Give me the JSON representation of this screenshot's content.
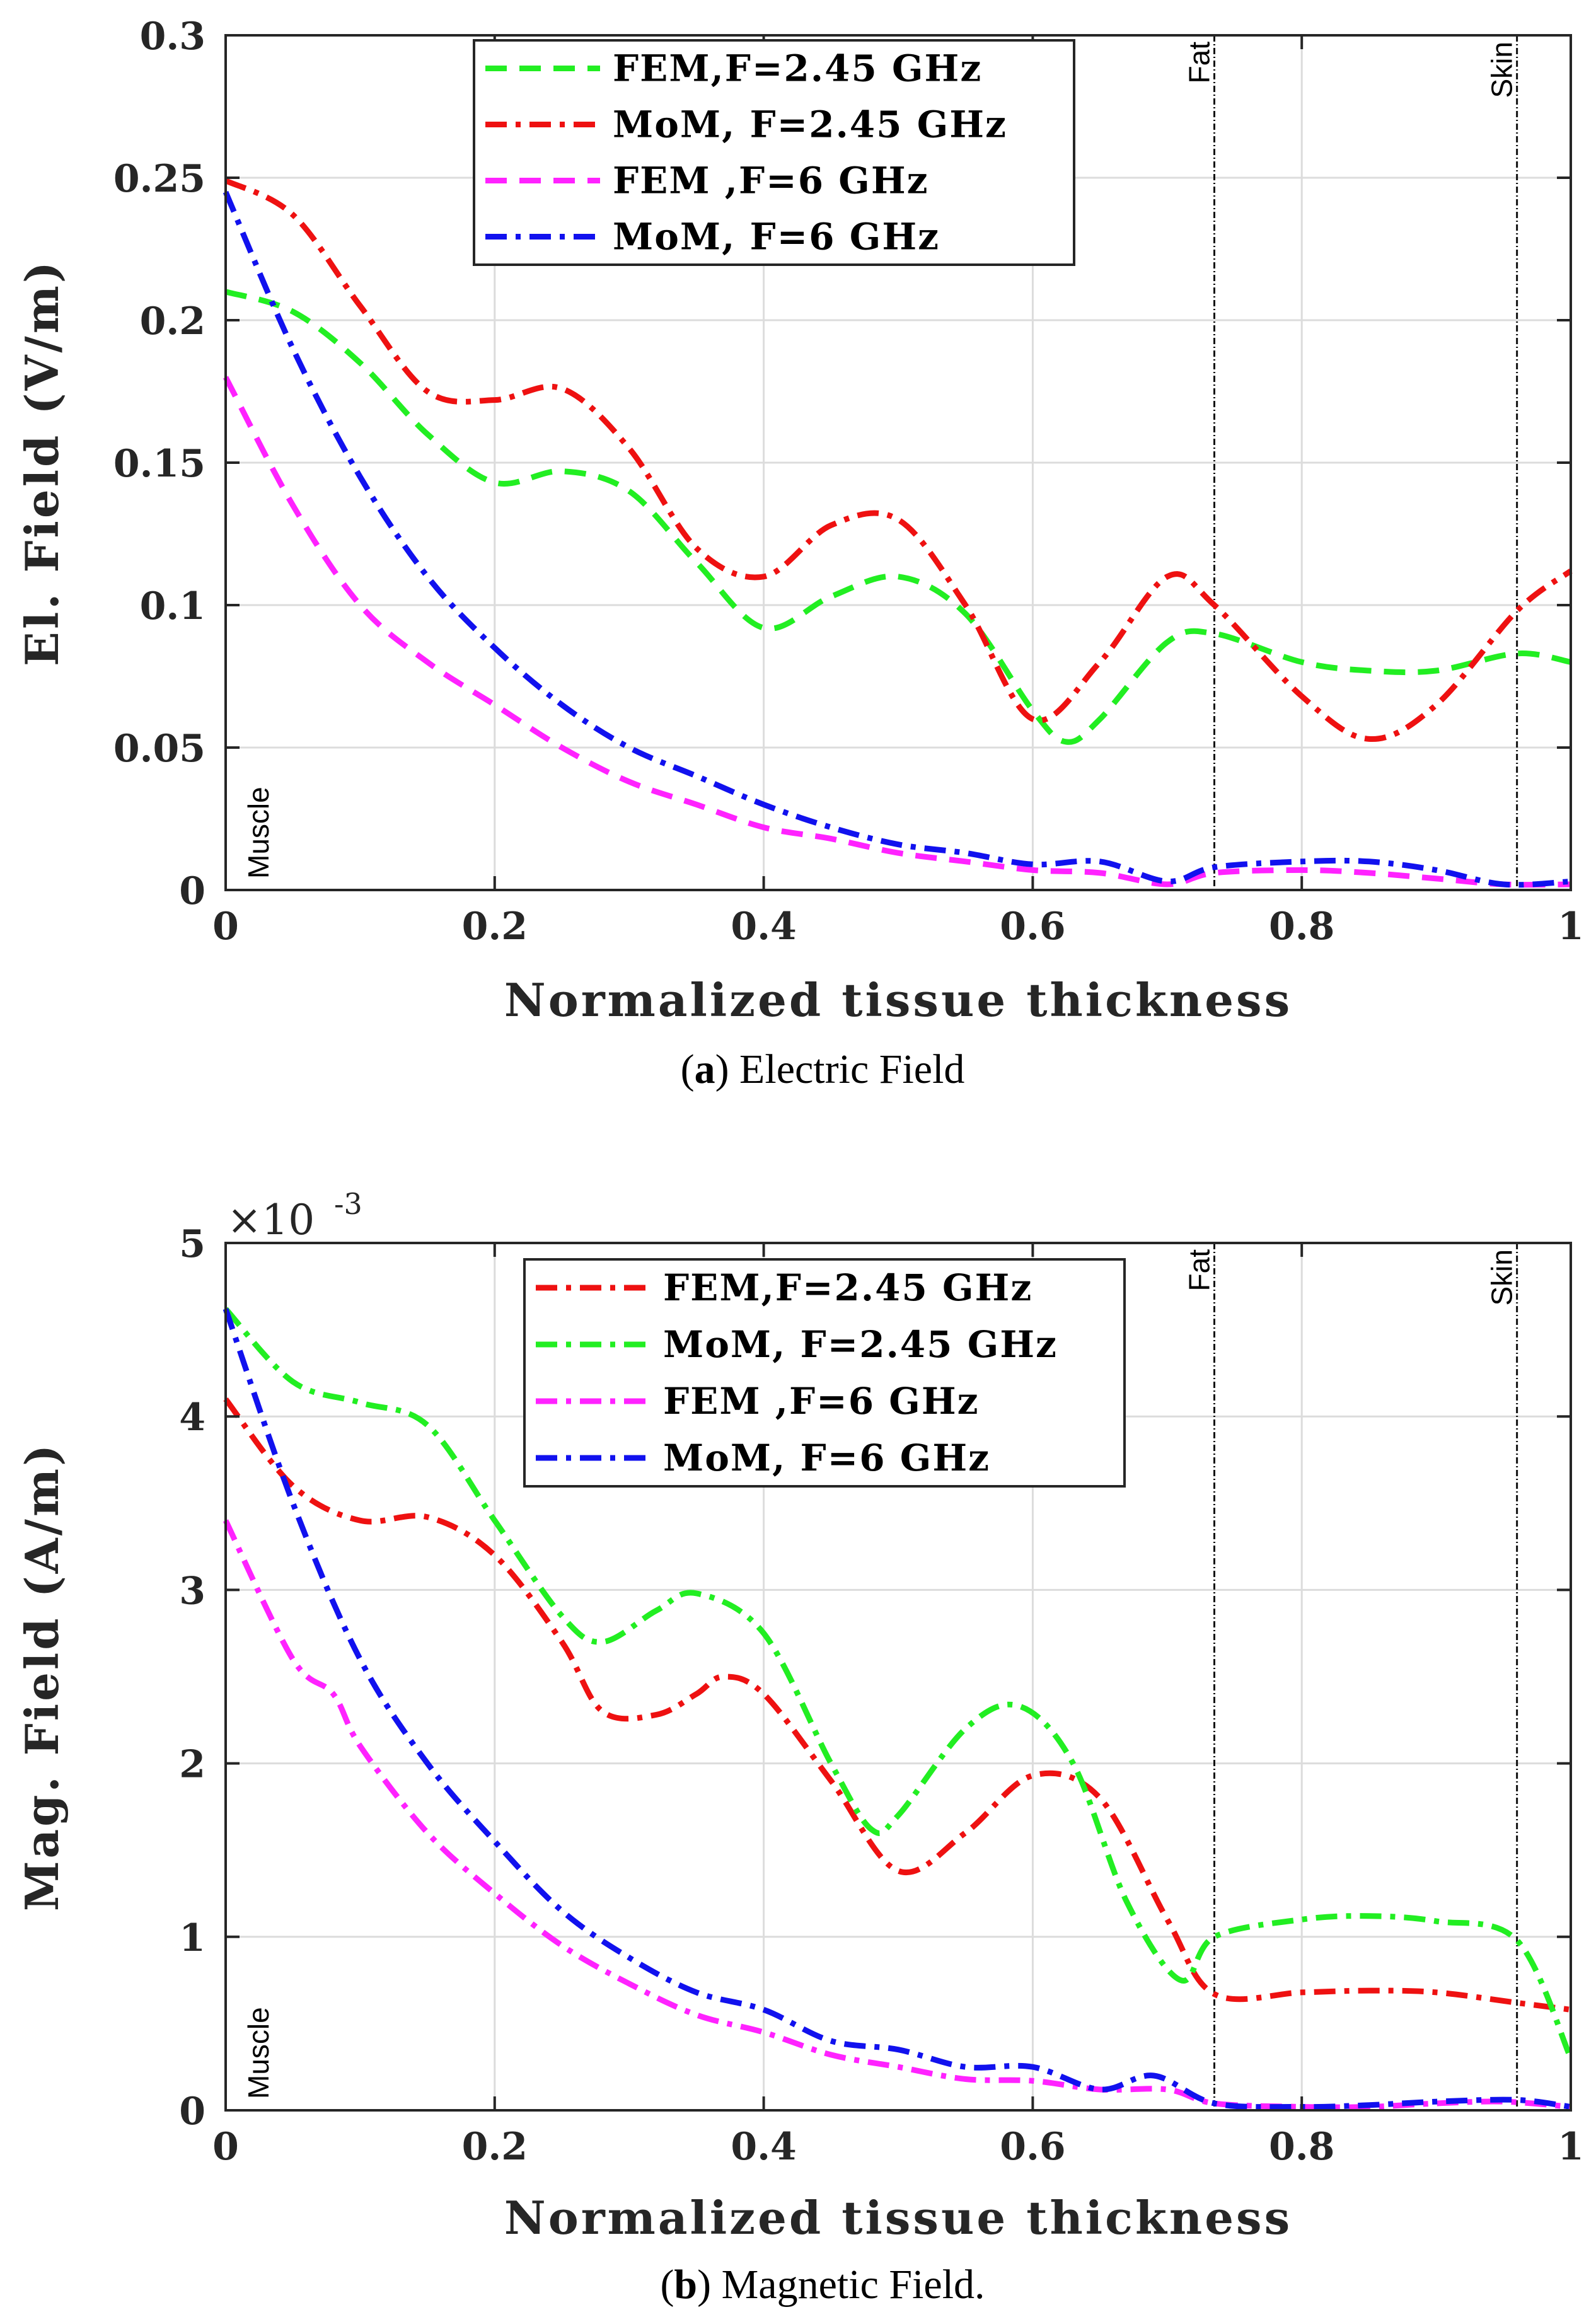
{
  "chart_data": [
    {
      "type": "line",
      "panel": "a",
      "ylabel": "El. Field (V/m)",
      "xlabel": "Normalized tissue thickness",
      "caption_letter": "a",
      "caption_text": "Electric Field",
      "xlim": [
        0,
        1
      ],
      "ylim": [
        0,
        0.3
      ],
      "xticks": [
        0,
        0.2,
        0.4,
        0.6,
        0.8,
        1
      ],
      "xtick_labels": [
        "0",
        "0.2",
        "0.4",
        "0.6",
        "0.8",
        "1"
      ],
      "yticks": [
        0,
        0.05,
        0.1,
        0.15,
        0.2,
        0.25,
        0.3
      ],
      "ytick_labels": [
        "0",
        "0.05",
        "0.1",
        "0.15",
        "0.2",
        "0.25",
        "0.3"
      ],
      "grid": true,
      "legend_position": "top-center",
      "region_lines": [
        {
          "label": "Fat",
          "x": 0.735
        },
        {
          "label": "Skin",
          "x": 0.96
        }
      ],
      "region_text_muscle": "Muscle",
      "series": [
        {
          "name": "FEM,F=2.45 GHz",
          "color": "#22ee22",
          "style": "dashed",
          "x": [
            0,
            0.05,
            0.1,
            0.15,
            0.2,
            0.25,
            0.3,
            0.35,
            0.4,
            0.45,
            0.5,
            0.55,
            0.6,
            0.625,
            0.65,
            0.7,
            0.735,
            0.8,
            0.85,
            0.9,
            0.96,
            1.0
          ],
          "y": [
            0.21,
            0.203,
            0.185,
            0.16,
            0.143,
            0.147,
            0.14,
            0.115,
            0.092,
            0.103,
            0.11,
            0.097,
            0.063,
            0.052,
            0.06,
            0.087,
            0.09,
            0.08,
            0.077,
            0.077,
            0.083,
            0.08
          ]
        },
        {
          "name": "MoM, F=2.45 GHz",
          "color": "#ee1111",
          "style": "dashdot",
          "x": [
            0,
            0.05,
            0.1,
            0.15,
            0.2,
            0.25,
            0.3,
            0.35,
            0.4,
            0.45,
            0.5,
            0.55,
            0.6,
            0.65,
            0.7,
            0.735,
            0.8,
            0.85,
            0.9,
            0.96,
            1.0
          ],
          "y": [
            0.249,
            0.237,
            0.205,
            0.175,
            0.172,
            0.176,
            0.155,
            0.12,
            0.11,
            0.128,
            0.13,
            0.1,
            0.06,
            0.08,
            0.11,
            0.1,
            0.068,
            0.053,
            0.065,
            0.098,
            0.112
          ]
        },
        {
          "name": "FEM ,F=6 GHz",
          "color": "#ff22ff",
          "style": "dashed",
          "x": [
            0,
            0.05,
            0.1,
            0.15,
            0.2,
            0.25,
            0.3,
            0.35,
            0.4,
            0.45,
            0.5,
            0.55,
            0.6,
            0.65,
            0.7,
            0.735,
            0.8,
            0.85,
            0.9,
            0.95,
            1.0
          ],
          "y": [
            0.18,
            0.135,
            0.1,
            0.08,
            0.065,
            0.05,
            0.038,
            0.03,
            0.022,
            0.018,
            0.013,
            0.01,
            0.007,
            0.006,
            0.002,
            0.006,
            0.007,
            0.006,
            0.004,
            0.002,
            0.002
          ]
        },
        {
          "name": "MoM, F=6 GHz",
          "color": "#1111ee",
          "style": "dashdot",
          "x": [
            0,
            0.05,
            0.1,
            0.15,
            0.2,
            0.25,
            0.3,
            0.35,
            0.4,
            0.45,
            0.5,
            0.55,
            0.6,
            0.65,
            0.7,
            0.735,
            0.8,
            0.85,
            0.9,
            0.95,
            1.0
          ],
          "y": [
            0.245,
            0.19,
            0.145,
            0.11,
            0.085,
            0.065,
            0.05,
            0.04,
            0.03,
            0.022,
            0.016,
            0.013,
            0.009,
            0.01,
            0.003,
            0.008,
            0.01,
            0.01,
            0.007,
            0.002,
            0.003
          ]
        }
      ]
    },
    {
      "type": "line",
      "panel": "b",
      "ylabel": "Mag. Field (A/m)",
      "xlabel": "Normalized tissue thickness",
      "caption_letter": "b",
      "caption_text": "Magnetic Field.",
      "multiplier_base": "×10",
      "multiplier_exp": "-3",
      "xlim": [
        0,
        1
      ],
      "ylim": [
        0,
        5
      ],
      "xticks": [
        0,
        0.2,
        0.4,
        0.6,
        0.8,
        1
      ],
      "xtick_labels": [
        "0",
        "0.2",
        "0.4",
        "0.6",
        "0.8",
        "1"
      ],
      "yticks": [
        0,
        1,
        2,
        3,
        4,
        5
      ],
      "ytick_labels": [
        "0",
        "1",
        "2",
        "3",
        "4",
        "5"
      ],
      "grid": true,
      "legend_position": "top-center",
      "region_lines": [
        {
          "label": "Fat",
          "x": 0.735
        },
        {
          "label": "Skin",
          "x": 0.96
        }
      ],
      "region_text_muscle": "Muscle",
      "series": [
        {
          "name": "FEM,F=2.45 GHz",
          "color": "#ee1111",
          "style": "dashdot",
          "x": [
            0,
            0.05,
            0.1,
            0.15,
            0.2,
            0.25,
            0.28,
            0.32,
            0.35,
            0.37,
            0.4,
            0.45,
            0.5,
            0.55,
            0.6,
            0.65,
            0.7,
            0.735,
            0.8,
            0.85,
            0.9,
            0.96,
            1.0
          ],
          "y": [
            4.1,
            3.6,
            3.4,
            3.42,
            3.2,
            2.7,
            2.3,
            2.28,
            2.4,
            2.5,
            2.4,
            1.9,
            1.38,
            1.6,
            1.93,
            1.8,
            1.1,
            0.67,
            0.68,
            0.69,
            0.68,
            0.62,
            0.58
          ]
        },
        {
          "name": "MoM, F=2.45 GHz",
          "color": "#22ee22",
          "style": "dashdot",
          "x": [
            0,
            0.05,
            0.1,
            0.15,
            0.2,
            0.25,
            0.28,
            0.32,
            0.35,
            0.4,
            0.45,
            0.48,
            0.5,
            0.55,
            0.59,
            0.63,
            0.67,
            0.71,
            0.735,
            0.8,
            0.85,
            0.9,
            0.96,
            1.0
          ],
          "y": [
            4.62,
            4.2,
            4.08,
            3.95,
            3.4,
            2.85,
            2.7,
            2.88,
            2.98,
            2.75,
            2.0,
            1.62,
            1.7,
            2.2,
            2.33,
            2.0,
            1.2,
            0.75,
            1.0,
            1.1,
            1.12,
            1.09,
            0.98,
            0.3
          ]
        },
        {
          "name": "FEM ,F=6 GHz",
          "color": "#ff22ff",
          "style": "dashdot",
          "x": [
            0,
            0.05,
            0.08,
            0.1,
            0.15,
            0.2,
            0.25,
            0.3,
            0.35,
            0.4,
            0.45,
            0.5,
            0.55,
            0.6,
            0.65,
            0.7,
            0.735,
            0.8,
            0.85,
            0.9,
            0.95,
            1.0
          ],
          "y": [
            3.4,
            2.6,
            2.4,
            2.1,
            1.6,
            1.25,
            0.95,
            0.73,
            0.55,
            0.45,
            0.32,
            0.25,
            0.18,
            0.17,
            0.12,
            0.12,
            0.04,
            0.02,
            0.02,
            0.04,
            0.05,
            0.02
          ]
        },
        {
          "name": "MoM, F=6 GHz",
          "color": "#1111ee",
          "style": "dashdot",
          "x": [
            0,
            0.05,
            0.1,
            0.15,
            0.2,
            0.25,
            0.3,
            0.35,
            0.4,
            0.45,
            0.5,
            0.55,
            0.6,
            0.65,
            0.69,
            0.735,
            0.8,
            0.85,
            0.9,
            0.96,
            1.0
          ],
          "y": [
            4.62,
            3.5,
            2.6,
            2.0,
            1.55,
            1.15,
            0.88,
            0.68,
            0.58,
            0.4,
            0.35,
            0.25,
            0.25,
            0.12,
            0.2,
            0.04,
            0.02,
            0.03,
            0.05,
            0.06,
            0.02
          ]
        }
      ]
    }
  ]
}
